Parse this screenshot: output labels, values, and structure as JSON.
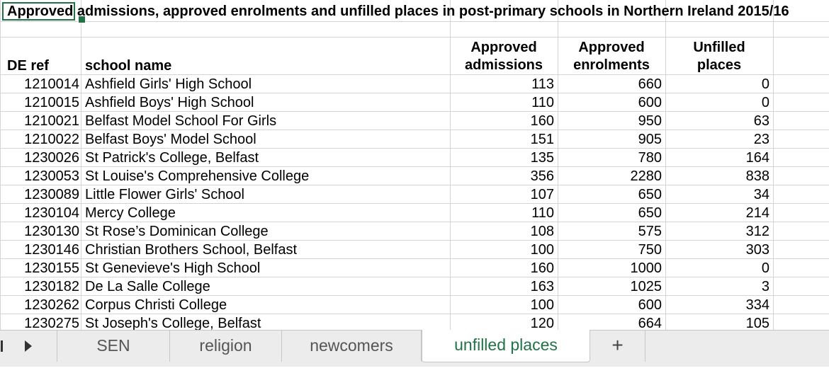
{
  "title": "Approved admissions, approved enrolments and unfilled places in post-primary schools in Northern Ireland 2015/16",
  "selected_cell_text": "Approved",
  "headers": {
    "de_ref": "DE ref",
    "school_name": "school name",
    "admissions_1": "Approved",
    "admissions_2": "admissions",
    "enrolments_1": "Approved",
    "enrolments_2": "enrolments",
    "unfilled_1": "Unfilled",
    "unfilled_2": "places"
  },
  "rows": [
    {
      "ref": "1210014",
      "name": "Ashfield Girls' High School",
      "admissions": "113",
      "enrolments": "660",
      "unfilled": "0"
    },
    {
      "ref": "1210015",
      "name": "Ashfield Boys' High School",
      "admissions": "110",
      "enrolments": "600",
      "unfilled": "0"
    },
    {
      "ref": "1210021",
      "name": "Belfast Model School For Girls",
      "admissions": "160",
      "enrolments": "950",
      "unfilled": "63"
    },
    {
      "ref": "1210022",
      "name": "Belfast Boys' Model School",
      "admissions": "151",
      "enrolments": "905",
      "unfilled": "23"
    },
    {
      "ref": "1230026",
      "name": "St Patrick's College, Belfast",
      "admissions": "135",
      "enrolments": "780",
      "unfilled": "164"
    },
    {
      "ref": "1230053",
      "name": "St Louise's Comprehensive College",
      "admissions": "356",
      "enrolments": "2280",
      "unfilled": "838"
    },
    {
      "ref": "1230089",
      "name": "Little Flower Girls' School",
      "admissions": "107",
      "enrolments": "650",
      "unfilled": "34"
    },
    {
      "ref": "1230104",
      "name": "Mercy College",
      "admissions": "110",
      "enrolments": "650",
      "unfilled": "214"
    },
    {
      "ref": "1230130",
      "name": "St Rose’s Dominican College",
      "admissions": "108",
      "enrolments": "575",
      "unfilled": "312"
    },
    {
      "ref": "1230146",
      "name": "Christian Brothers School, Belfast",
      "admissions": "100",
      "enrolments": "750",
      "unfilled": "303"
    },
    {
      "ref": "1230155",
      "name": "St Genevieve's High School",
      "admissions": "160",
      "enrolments": "1000",
      "unfilled": "0"
    },
    {
      "ref": "1230182",
      "name": "De La Salle College",
      "admissions": "163",
      "enrolments": "1025",
      "unfilled": "3"
    },
    {
      "ref": "1230262",
      "name": "Corpus Christi College",
      "admissions": "100",
      "enrolments": "600",
      "unfilled": "334"
    },
    {
      "ref": "1230275",
      "name": "St Joseph's College, Belfast",
      "admissions": "120",
      "enrolments": "664",
      "unfilled": "105"
    }
  ],
  "tabs": [
    {
      "label": "SEN",
      "active": false
    },
    {
      "label": "religion",
      "active": false
    },
    {
      "label": "newcomers",
      "active": false
    },
    {
      "label": "unfilled places",
      "active": true
    }
  ],
  "add_sheet_label": "+",
  "icons": {
    "prev": "scroll-left-icon",
    "next": "scroll-right-icon"
  },
  "colors": {
    "accent": "#217346",
    "grid": "#d4d4d4",
    "tabbar": "#ececec"
  }
}
